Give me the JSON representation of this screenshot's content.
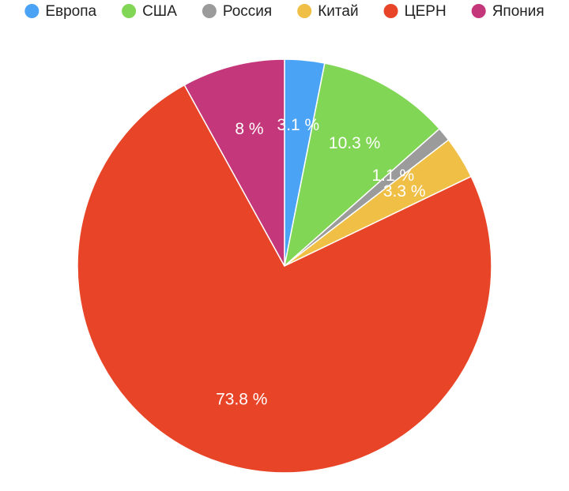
{
  "chart_data": {
    "type": "pie",
    "categories": [
      "Европа",
      "США",
      "Россия",
      "Китай",
      "ЦЕРН",
      "Япония"
    ],
    "values": [
      3.1,
      10.3,
      1.1,
      3.3,
      73.8,
      8
    ],
    "value_labels": [
      "3.1 %",
      "10.3 %",
      "1.1 %",
      "3.3 %",
      "73.8 %",
      "8 %"
    ],
    "colors": [
      "#4aa3f5",
      "#82d655",
      "#9b9b9b",
      "#f0bf45",
      "#e84427",
      "#c4377a"
    ],
    "legend": "top"
  }
}
